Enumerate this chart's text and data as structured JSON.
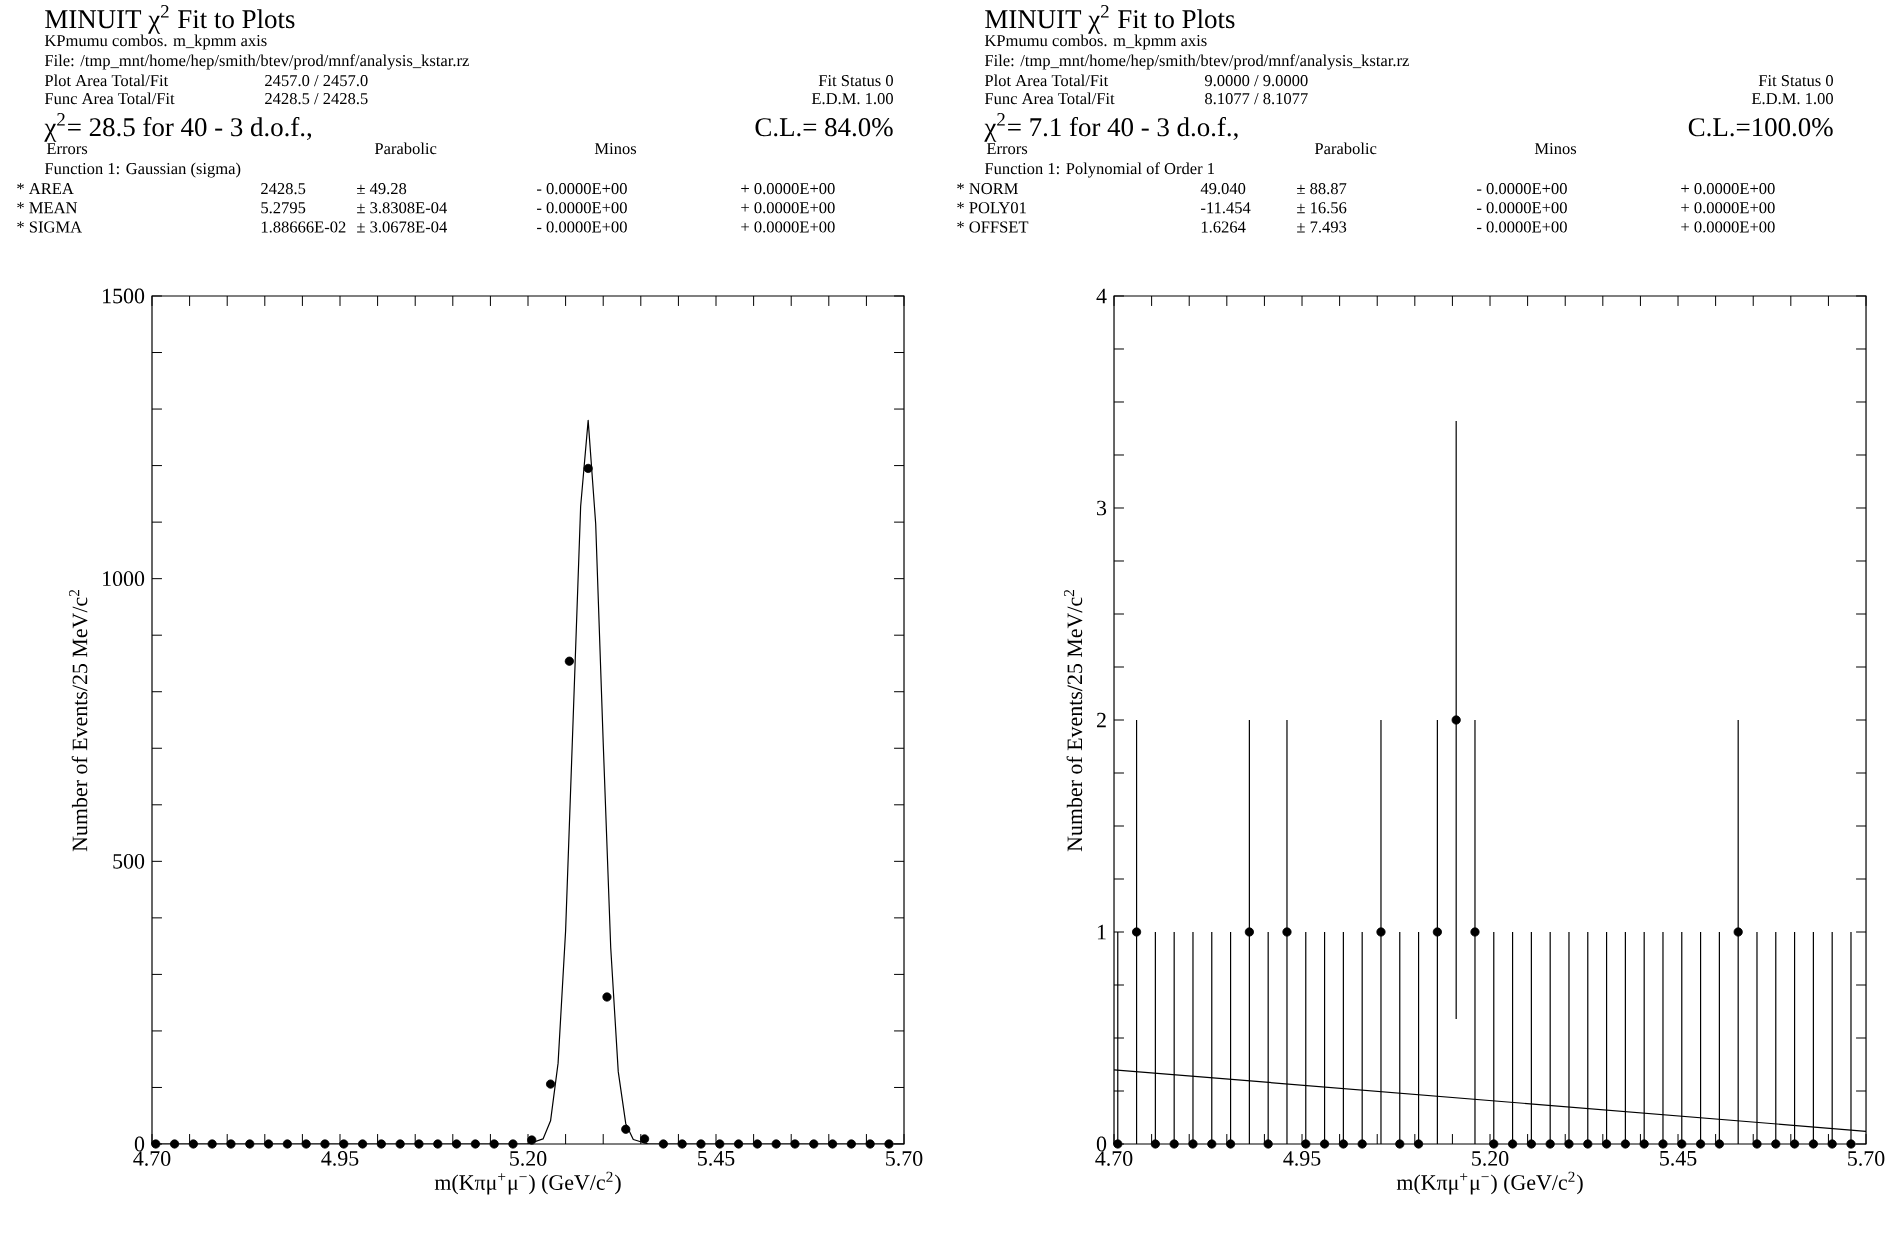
{
  "chart_data": [
    {
      "type": "scatter",
      "title": "MINUIT χ$^{2}$ Fit to Plots",
      "subtitle": "KPmumu combos. m_kpmm axis",
      "xlabel": "m(Kπμ$^{+}$μ$^{−}$) (GeV/c$^{2}$)",
      "ylabel": "Number of Events/25 MeV/c$^{2}$",
      "annotations": [
        "File: /tmp_mnt/home/hep/smith/btev/prod/mnf/analysis_kstar.rz",
        "Plot Area Total/Fit",
        "2457.0 / 2457.0",
        "Fit Status  0",
        "Func Area Total/Fit",
        "2428.5 / 2428.5",
        "E.D.M.  1.00",
        "χ$^{2}$=   28.5 for  40 -  3 d.o.f.,",
        "C.L.= 84.0%",
        "Errors",
        "Parabolic",
        "Minos",
        "Function  1: Gaussian (sigma)",
        "* AREA",
        "2428.5",
        "±  49.28",
        "-  0.0000E+00",
        "+  0.0000E+00",
        "* MEAN",
        "5.2795",
        "±  3.8308E-04",
        "-  0.0000E+00",
        "+  0.0000E+00",
        "* SIGMA",
        "1.88666E-02",
        "±  3.0678E-04",
        "-  0.0000E+00",
        "+  0.0000E+00"
      ],
      "x": [
        4.705,
        4.73,
        4.755,
        4.78,
        4.805,
        4.83,
        4.855,
        4.88,
        4.905,
        4.93,
        4.955,
        4.98,
        5.005,
        5.03,
        5.055,
        5.08,
        5.105,
        5.13,
        5.155,
        5.18,
        5.205,
        5.23,
        5.255,
        5.28,
        5.305,
        5.33,
        5.355,
        5.38,
        5.405,
        5.43,
        5.455,
        5.48,
        5.505,
        5.53,
        5.555,
        5.58,
        5.605,
        5.63,
        5.655,
        5.68
      ],
      "series": [
        {
          "color": "#000000",
          "values": [
            0,
            0,
            0,
            0,
            0,
            0,
            0,
            0,
            0,
            0,
            0,
            0,
            0,
            0,
            0,
            0,
            0,
            0,
            0,
            0,
            7,
            106,
            854,
            1195,
            260,
            26,
            9,
            0,
            0,
            0,
            0,
            0,
            0,
            0,
            0,
            0,
            0,
            0,
            0,
            0
          ]
        },
        {
          "type": "line",
          "marker": "none",
          "color": "#000000",
          "x": [
            4.7,
            5.2,
            5.22,
            5.23,
            5.24,
            5.25,
            5.26,
            5.27,
            5.28,
            5.29,
            5.3,
            5.31,
            5.32,
            5.33,
            5.34,
            5.36,
            5.7
          ],
          "values": [
            0,
            0,
            9,
            41,
            143,
            377,
            751,
            1128,
            1280,
            1097,
            710,
            347,
            128,
            36,
            8,
            0,
            0
          ]
        }
      ],
      "xlim": [
        4.7,
        5.7
      ],
      "ylim": [
        0,
        1500
      ],
      "xticks": [
        {
          "value": 4.7,
          "label": "4.70"
        },
        {
          "value": 4.75,
          "label": null
        },
        {
          "value": 4.8,
          "label": null
        },
        {
          "value": 4.85,
          "label": null
        },
        {
          "value": 4.9,
          "label": null
        },
        {
          "value": 4.95,
          "label": "4.95"
        },
        {
          "value": 5.0,
          "label": null
        },
        {
          "value": 5.05,
          "label": null
        },
        {
          "value": 5.1,
          "label": null
        },
        {
          "value": 5.15,
          "label": null
        },
        {
          "value": 5.2,
          "label": "5.20"
        },
        {
          "value": 5.25,
          "label": null
        },
        {
          "value": 5.3,
          "label": null
        },
        {
          "value": 5.35,
          "label": null
        },
        {
          "value": 5.4,
          "label": null
        },
        {
          "value": 5.45,
          "label": "5.45"
        },
        {
          "value": 5.5,
          "label": null
        },
        {
          "value": 5.55,
          "label": null
        },
        {
          "value": 5.6,
          "label": null
        },
        {
          "value": 5.65,
          "label": null
        },
        {
          "value": 5.7,
          "label": "5.70"
        }
      ],
      "yticks": [
        0,
        {
          "value": 100,
          "label": null
        },
        {
          "value": 200,
          "label": null
        },
        {
          "value": 300,
          "label": null
        },
        {
          "value": 400,
          "label": null
        },
        500,
        {
          "value": 600,
          "label": null
        },
        {
          "value": 700,
          "label": null
        },
        {
          "value": 800,
          "label": null
        },
        {
          "value": 900,
          "label": null
        },
        1000,
        {
          "value": 1100,
          "label": null
        },
        {
          "value": 1200,
          "label": null
        },
        {
          "value": 1300,
          "label": null
        },
        {
          "value": 1400,
          "label": null
        },
        1500
      ]
    },
    {
      "type": "scatter",
      "title": "MINUIT χ$^{2}$ Fit to Plots",
      "subtitle": "KPmumu combos. m_kpmm axis",
      "xlabel": "m(Kπμ$^{+}$μ$^{−}$) (GeV/c$^{2}$)",
      "ylabel": "Number of Events/25 MeV/c$^{2}$",
      "annotations": [
        "File: /tmp_mnt/home/hep/smith/btev/prod/mnf/analysis_kstar.rz",
        "Plot Area Total/Fit",
        "9.0000 / 9.0000",
        "Fit Status  0",
        "Func Area Total/Fit",
        "8.1077 / 8.1077",
        "E.D.M.  1.00",
        "χ$^{2}$=    7.1 for  40 -  3 d.o.f.,",
        "C.L.=100.0%",
        "Errors",
        "Parabolic",
        "Minos",
        "Function  1: Polynomial  of  Order 1",
        "* NORM",
        "49.040",
        "±  88.87",
        "-  0.0000E+00",
        "+  0.0000E+00",
        "* POLY01",
        "-11.454",
        "±  16.56",
        "-  0.0000E+00",
        "+  0.0000E+00",
        "* OFFSET",
        "1.6264",
        "±  7.493",
        "-  0.0000E+00",
        "+  0.0000E+00"
      ],
      "x": [
        4.705,
        4.73,
        4.755,
        4.78,
        4.805,
        4.83,
        4.855,
        4.88,
        4.905,
        4.93,
        4.955,
        4.98,
        5.005,
        5.03,
        5.055,
        5.08,
        5.105,
        5.13,
        5.155,
        5.18,
        5.205,
        5.23,
        5.255,
        5.28,
        5.305,
        5.33,
        5.355,
        5.38,
        5.405,
        5.43,
        5.455,
        5.48,
        5.505,
        5.53,
        5.555,
        5.58,
        5.605,
        5.63,
        5.655,
        5.68
      ],
      "series": [
        {
          "color": "#000000",
          "values": [
            0,
            1,
            0,
            0,
            0,
            0,
            0,
            1,
            0,
            1,
            0,
            0,
            0,
            0,
            1,
            0,
            0,
            1,
            2,
            1,
            0,
            0,
            0,
            0,
            0,
            0,
            0,
            0,
            0,
            0,
            0,
            0,
            0,
            1,
            0,
            0,
            0,
            0,
            0,
            0
          ],
          "errors": [
            [
              0,
              1
            ],
            1,
            [
              0,
              1
            ],
            [
              0,
              1
            ],
            [
              0,
              1
            ],
            [
              0,
              1
            ],
            [
              0,
              1
            ],
            1,
            [
              0,
              1
            ],
            1,
            [
              0,
              1
            ],
            [
              0,
              1
            ],
            [
              0,
              1
            ],
            [
              0,
              1
            ],
            1,
            [
              0,
              1
            ],
            [
              0,
              1
            ],
            1,
            1.41,
            1,
            [
              0,
              1
            ],
            [
              0,
              1
            ],
            [
              0,
              1
            ],
            [
              0,
              1
            ],
            [
              0,
              1
            ],
            [
              0,
              1
            ],
            [
              0,
              1
            ],
            [
              0,
              1
            ],
            [
              0,
              1
            ],
            [
              0,
              1
            ],
            [
              0,
              1
            ],
            [
              0,
              1
            ],
            [
              0,
              1
            ],
            1,
            [
              0,
              1
            ],
            [
              0,
              1
            ],
            [
              0,
              1
            ],
            [
              0,
              1
            ],
            [
              0,
              1
            ],
            [
              0,
              1
            ]
          ]
        },
        {
          "type": "line",
          "marker": "none",
          "color": "#000000",
          "x": [
            4.7,
            5.7
          ],
          "values": [
            0.35,
            0.06
          ]
        }
      ],
      "xlim": [
        4.7,
        5.7
      ],
      "ylim": [
        0,
        4
      ],
      "xticks": [
        {
          "value": 4.7,
          "label": "4.70"
        },
        {
          "value": 4.75,
          "label": null
        },
        {
          "value": 4.8,
          "label": null
        },
        {
          "value": 4.85,
          "label": null
        },
        {
          "value": 4.9,
          "label": null
        },
        {
          "value": 4.95,
          "label": "4.95"
        },
        {
          "value": 5.0,
          "label": null
        },
        {
          "value": 5.05,
          "label": null
        },
        {
          "value": 5.1,
          "label": null
        },
        {
          "value": 5.15,
          "label": null
        },
        {
          "value": 5.2,
          "label": "5.20"
        },
        {
          "value": 5.25,
          "label": null
        },
        {
          "value": 5.3,
          "label": null
        },
        {
          "value": 5.35,
          "label": null
        },
        {
          "value": 5.4,
          "label": null
        },
        {
          "value": 5.45,
          "label": "5.45"
        },
        {
          "value": 5.5,
          "label": null
        },
        {
          "value": 5.55,
          "label": null
        },
        {
          "value": 5.6,
          "label": null
        },
        {
          "value": 5.65,
          "label": null
        },
        {
          "value": 5.7,
          "label": "5.70"
        }
      ],
      "yticks": [
        0,
        {
          "value": 0.25,
          "label": null
        },
        {
          "value": 0.5,
          "label": null
        },
        {
          "value": 0.75,
          "label": null
        },
        1,
        {
          "value": 1.25,
          "label": null
        },
        {
          "value": 1.5,
          "label": null
        },
        {
          "value": 1.75,
          "label": null
        },
        2,
        {
          "value": 2.25,
          "label": null
        },
        {
          "value": 2.5,
          "label": null
        },
        {
          "value": 2.75,
          "label": null
        },
        3,
        {
          "value": 3.25,
          "label": null
        },
        {
          "value": 3.5,
          "label": null
        },
        {
          "value": 3.75,
          "label": null
        },
        4
      ]
    }
  ]
}
